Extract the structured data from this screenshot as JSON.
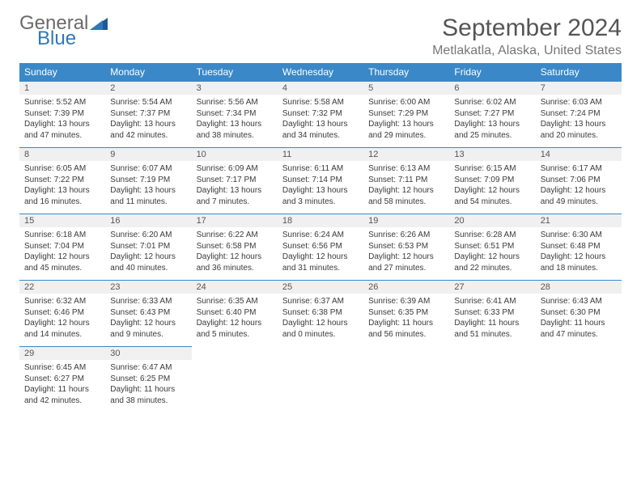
{
  "brand": {
    "word1": "General",
    "word2": "Blue",
    "tri_color": "#1b5a99"
  },
  "header": {
    "month": "September 2024",
    "location": "Metlakatla, Alaska, United States"
  },
  "colors": {
    "header_bg": "#3a88c8",
    "daynum_bg": "#f0f0f0",
    "rule": "#3a88c8"
  },
  "day_labels": [
    "Sunday",
    "Monday",
    "Tuesday",
    "Wednesday",
    "Thursday",
    "Friday",
    "Saturday"
  ],
  "weeks": [
    [
      {
        "n": "1",
        "sr": "Sunrise: 5:52 AM",
        "ss": "Sunset: 7:39 PM",
        "dl": "Daylight: 13 hours and 47 minutes."
      },
      {
        "n": "2",
        "sr": "Sunrise: 5:54 AM",
        "ss": "Sunset: 7:37 PM",
        "dl": "Daylight: 13 hours and 42 minutes."
      },
      {
        "n": "3",
        "sr": "Sunrise: 5:56 AM",
        "ss": "Sunset: 7:34 PM",
        "dl": "Daylight: 13 hours and 38 minutes."
      },
      {
        "n": "4",
        "sr": "Sunrise: 5:58 AM",
        "ss": "Sunset: 7:32 PM",
        "dl": "Daylight: 13 hours and 34 minutes."
      },
      {
        "n": "5",
        "sr": "Sunrise: 6:00 AM",
        "ss": "Sunset: 7:29 PM",
        "dl": "Daylight: 13 hours and 29 minutes."
      },
      {
        "n": "6",
        "sr": "Sunrise: 6:02 AM",
        "ss": "Sunset: 7:27 PM",
        "dl": "Daylight: 13 hours and 25 minutes."
      },
      {
        "n": "7",
        "sr": "Sunrise: 6:03 AM",
        "ss": "Sunset: 7:24 PM",
        "dl": "Daylight: 13 hours and 20 minutes."
      }
    ],
    [
      {
        "n": "8",
        "sr": "Sunrise: 6:05 AM",
        "ss": "Sunset: 7:22 PM",
        "dl": "Daylight: 13 hours and 16 minutes."
      },
      {
        "n": "9",
        "sr": "Sunrise: 6:07 AM",
        "ss": "Sunset: 7:19 PM",
        "dl": "Daylight: 13 hours and 11 minutes."
      },
      {
        "n": "10",
        "sr": "Sunrise: 6:09 AM",
        "ss": "Sunset: 7:17 PM",
        "dl": "Daylight: 13 hours and 7 minutes."
      },
      {
        "n": "11",
        "sr": "Sunrise: 6:11 AM",
        "ss": "Sunset: 7:14 PM",
        "dl": "Daylight: 13 hours and 3 minutes."
      },
      {
        "n": "12",
        "sr": "Sunrise: 6:13 AM",
        "ss": "Sunset: 7:11 PM",
        "dl": "Daylight: 12 hours and 58 minutes."
      },
      {
        "n": "13",
        "sr": "Sunrise: 6:15 AM",
        "ss": "Sunset: 7:09 PM",
        "dl": "Daylight: 12 hours and 54 minutes."
      },
      {
        "n": "14",
        "sr": "Sunrise: 6:17 AM",
        "ss": "Sunset: 7:06 PM",
        "dl": "Daylight: 12 hours and 49 minutes."
      }
    ],
    [
      {
        "n": "15",
        "sr": "Sunrise: 6:18 AM",
        "ss": "Sunset: 7:04 PM",
        "dl": "Daylight: 12 hours and 45 minutes."
      },
      {
        "n": "16",
        "sr": "Sunrise: 6:20 AM",
        "ss": "Sunset: 7:01 PM",
        "dl": "Daylight: 12 hours and 40 minutes."
      },
      {
        "n": "17",
        "sr": "Sunrise: 6:22 AM",
        "ss": "Sunset: 6:58 PM",
        "dl": "Daylight: 12 hours and 36 minutes."
      },
      {
        "n": "18",
        "sr": "Sunrise: 6:24 AM",
        "ss": "Sunset: 6:56 PM",
        "dl": "Daylight: 12 hours and 31 minutes."
      },
      {
        "n": "19",
        "sr": "Sunrise: 6:26 AM",
        "ss": "Sunset: 6:53 PM",
        "dl": "Daylight: 12 hours and 27 minutes."
      },
      {
        "n": "20",
        "sr": "Sunrise: 6:28 AM",
        "ss": "Sunset: 6:51 PM",
        "dl": "Daylight: 12 hours and 22 minutes."
      },
      {
        "n": "21",
        "sr": "Sunrise: 6:30 AM",
        "ss": "Sunset: 6:48 PM",
        "dl": "Daylight: 12 hours and 18 minutes."
      }
    ],
    [
      {
        "n": "22",
        "sr": "Sunrise: 6:32 AM",
        "ss": "Sunset: 6:46 PM",
        "dl": "Daylight: 12 hours and 14 minutes."
      },
      {
        "n": "23",
        "sr": "Sunrise: 6:33 AM",
        "ss": "Sunset: 6:43 PM",
        "dl": "Daylight: 12 hours and 9 minutes."
      },
      {
        "n": "24",
        "sr": "Sunrise: 6:35 AM",
        "ss": "Sunset: 6:40 PM",
        "dl": "Daylight: 12 hours and 5 minutes."
      },
      {
        "n": "25",
        "sr": "Sunrise: 6:37 AM",
        "ss": "Sunset: 6:38 PM",
        "dl": "Daylight: 12 hours and 0 minutes."
      },
      {
        "n": "26",
        "sr": "Sunrise: 6:39 AM",
        "ss": "Sunset: 6:35 PM",
        "dl": "Daylight: 11 hours and 56 minutes."
      },
      {
        "n": "27",
        "sr": "Sunrise: 6:41 AM",
        "ss": "Sunset: 6:33 PM",
        "dl": "Daylight: 11 hours and 51 minutes."
      },
      {
        "n": "28",
        "sr": "Sunrise: 6:43 AM",
        "ss": "Sunset: 6:30 PM",
        "dl": "Daylight: 11 hours and 47 minutes."
      }
    ],
    [
      {
        "n": "29",
        "sr": "Sunrise: 6:45 AM",
        "ss": "Sunset: 6:27 PM",
        "dl": "Daylight: 11 hours and 42 minutes."
      },
      {
        "n": "30",
        "sr": "Sunrise: 6:47 AM",
        "ss": "Sunset: 6:25 PM",
        "dl": "Daylight: 11 hours and 38 minutes."
      },
      null,
      null,
      null,
      null,
      null
    ]
  ]
}
